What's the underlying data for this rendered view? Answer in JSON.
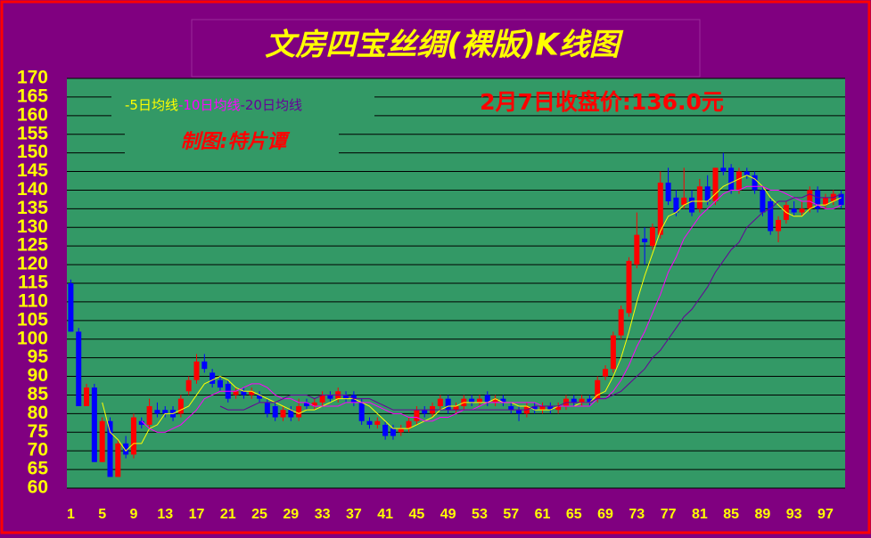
{
  "chart_data": {
    "type": "candlestick",
    "title": "文房四宝丝绸(裸版)K线图",
    "annotations": [
      "2月7日收盘价:136.0元",
      "制图:特片谭"
    ],
    "x": [
      1,
      2,
      3,
      4,
      5,
      6,
      7,
      8,
      9,
      10,
      11,
      12,
      13,
      14,
      15,
      16,
      17,
      18,
      19,
      20,
      21,
      22,
      23,
      24,
      25,
      26,
      27,
      28,
      29,
      30,
      31,
      32,
      33,
      34,
      35,
      36,
      37,
      38,
      39,
      40,
      41,
      42,
      43,
      44,
      45,
      46,
      47,
      48,
      49,
      50,
      51,
      52,
      53,
      54,
      55,
      56,
      57,
      58,
      59,
      60,
      61,
      62,
      63,
      64,
      65,
      66,
      67,
      68,
      69,
      70,
      71,
      72,
      73,
      74,
      75,
      76,
      77,
      78,
      79,
      80,
      81,
      82,
      83,
      84,
      85,
      86,
      87,
      88,
      89,
      90,
      91,
      92,
      93,
      94,
      95,
      96,
      97,
      98,
      99
    ],
    "open": [
      115,
      102,
      82,
      87,
      67,
      78,
      63,
      72,
      69,
      78,
      77,
      81,
      81,
      81,
      80,
      86,
      89,
      94,
      91,
      89,
      88,
      85,
      86,
      85,
      85,
      83,
      82,
      79,
      81,
      79,
      83,
      82,
      83,
      85,
      84,
      85,
      85,
      83,
      78,
      77,
      77,
      76,
      75,
      76,
      78,
      81,
      80,
      82,
      84,
      81,
      82,
      84,
      83,
      85,
      83,
      84,
      82,
      81,
      80,
      82,
      81,
      82,
      81,
      82,
      84,
      83,
      84,
      84,
      90,
      92,
      101,
      107,
      120,
      127,
      125,
      128,
      142,
      138,
      136,
      138,
      135,
      141,
      137,
      146,
      146,
      140,
      145,
      144,
      140,
      137,
      129,
      132,
      135,
      134,
      135,
      140,
      136,
      137,
      139
    ],
    "high": [
      116,
      103,
      88,
      88,
      79,
      79,
      73,
      74,
      80,
      79,
      84,
      83,
      82,
      82,
      85,
      90,
      96,
      96,
      92,
      90,
      89,
      87,
      87,
      87,
      86,
      84,
      83,
      82,
      82,
      84,
      84,
      84,
      86,
      86,
      87,
      86,
      86,
      84,
      79,
      79,
      78,
      77,
      77,
      79,
      82,
      82,
      83,
      85,
      85,
      83,
      85,
      85,
      85,
      86,
      85,
      85,
      83,
      82,
      83,
      83,
      83,
      83,
      83,
      85,
      85,
      85,
      85,
      90,
      93,
      102,
      109,
      122,
      134,
      130,
      131,
      145,
      146,
      140,
      146,
      140,
      143,
      144,
      146,
      150,
      147,
      146,
      146,
      145,
      141,
      138,
      133,
      137,
      137,
      137,
      141,
      141,
      139,
      140,
      140
    ],
    "low": [
      102,
      82,
      82,
      67,
      67,
      63,
      63,
      68,
      68,
      76,
      76,
      79,
      79,
      78,
      79,
      85,
      88,
      91,
      87,
      86,
      83,
      84,
      84,
      84,
      83,
      79,
      78,
      78,
      78,
      78,
      81,
      81,
      82,
      83,
      83,
      83,
      82,
      77,
      76,
      76,
      73,
      73,
      74,
      75,
      77,
      79,
      79,
      81,
      80,
      80,
      81,
      82,
      82,
      82,
      82,
      82,
      80,
      78,
      79,
      80,
      80,
      80,
      80,
      81,
      82,
      82,
      82,
      83,
      89,
      91,
      100,
      106,
      119,
      120,
      124,
      127,
      136,
      133,
      135,
      133,
      134,
      136,
      136,
      144,
      139,
      139,
      143,
      139,
      133,
      128,
      126,
      131,
      133,
      133,
      134,
      134,
      135,
      136,
      135
    ],
    "close": [
      102,
      82,
      87,
      67,
      78,
      63,
      72,
      69,
      79,
      77,
      82,
      80,
      80,
      79,
      84,
      89,
      94,
      92,
      88,
      87,
      84,
      86,
      85,
      86,
      84,
      80,
      79,
      81,
      79,
      82,
      82,
      83,
      85,
      84,
      86,
      84,
      83,
      78,
      77,
      78,
      74,
      74,
      76,
      78,
      81,
      80,
      82,
      84,
      81,
      82,
      84,
      83,
      84,
      83,
      84,
      83,
      81,
      80,
      82,
      81,
      82,
      81,
      82,
      84,
      83,
      84,
      83,
      89,
      92,
      101,
      108,
      121,
      128,
      126,
      130,
      142,
      137,
      134,
      138,
      134,
      141,
      137,
      146,
      145,
      140,
      145,
      144,
      140,
      134,
      129,
      132,
      136,
      134,
      135,
      140,
      135,
      138,
      139,
      136
    ],
    "up_color": "#ff0000",
    "down_color": "#0000ff",
    "lines": [
      {
        "name": "-5日均线",
        "color": "#ffff00",
        "values": [
          null,
          null,
          null,
          null,
          83,
          75,
          73,
          70,
          72,
          72,
          76,
          77,
          80,
          80,
          81,
          82,
          85,
          88,
          89,
          90,
          89,
          87,
          86,
          86,
          85,
          84,
          83,
          82,
          81,
          80,
          81,
          81,
          82,
          83,
          84,
          84,
          84,
          83,
          82,
          80,
          78,
          76,
          76,
          76,
          77,
          78,
          79,
          81,
          82,
          82,
          83,
          83,
          83,
          83,
          84,
          83,
          83,
          82,
          82,
          81,
          81,
          81,
          82,
          82,
          82,
          83,
          83,
          85,
          86,
          90,
          95,
          102,
          110,
          117,
          123,
          129,
          133,
          134,
          136,
          137,
          137,
          137,
          139,
          141,
          142,
          143,
          144,
          143,
          141,
          138,
          136,
          134,
          133,
          133,
          135,
          136,
          136,
          137,
          138
        ]
      },
      {
        "name": "-10日均线",
        "color": "#ff00ff",
        "values": [
          null,
          null,
          null,
          null,
          null,
          null,
          null,
          null,
          null,
          78,
          76,
          75,
          75,
          76,
          77,
          79,
          81,
          84,
          85,
          86,
          86,
          86,
          87,
          88,
          88,
          87,
          85,
          84,
          84,
          83,
          83,
          82,
          82,
          82,
          82,
          83,
          83,
          83,
          83,
          82,
          81,
          80,
          80,
          79,
          79,
          78,
          78,
          79,
          79,
          80,
          81,
          81,
          82,
          83,
          83,
          83,
          83,
          83,
          83,
          83,
          82,
          82,
          82,
          82,
          82,
          82,
          82,
          84,
          84,
          86,
          89,
          93,
          98,
          102,
          107,
          112,
          118,
          122,
          127,
          130,
          133,
          135,
          137,
          139,
          140,
          140,
          141,
          141,
          141,
          140,
          140,
          139,
          138,
          137,
          137,
          136,
          135,
          135,
          136
        ]
      },
      {
        "name": "-20日均线",
        "color": "#660099",
        "values": [
          null,
          null,
          null,
          null,
          null,
          null,
          null,
          null,
          null,
          null,
          null,
          null,
          null,
          null,
          null,
          null,
          null,
          null,
          null,
          82,
          81,
          81,
          81,
          82,
          83,
          83,
          83,
          84,
          85,
          85,
          85,
          84,
          85,
          85,
          85,
          85,
          84,
          84,
          84,
          83,
          82,
          81,
          81,
          81,
          81,
          81,
          81,
          81,
          81,
          81,
          81,
          81,
          81,
          81,
          81,
          81,
          81,
          81,
          81,
          82,
          82,
          82,
          82,
          83,
          83,
          83,
          83,
          84,
          84,
          85,
          86,
          88,
          90,
          92,
          95,
          97,
          100,
          103,
          106,
          108,
          111,
          114,
          118,
          121,
          124,
          126,
          130,
          132,
          134,
          135,
          137,
          137,
          138,
          138,
          139,
          138,
          138,
          138,
          139
        ]
      }
    ],
    "ylim": [
      60,
      170
    ],
    "yticks": [
      60,
      65,
      70,
      75,
      80,
      85,
      90,
      95,
      100,
      105,
      110,
      115,
      120,
      125,
      130,
      135,
      140,
      145,
      150,
      155,
      160,
      165,
      170
    ],
    "xlim": [
      0.5,
      99.5
    ],
    "xticks": [
      1,
      5,
      9,
      13,
      17,
      21,
      25,
      29,
      33,
      37,
      41,
      45,
      49,
      53,
      57,
      61,
      65,
      69,
      73,
      77,
      81,
      85,
      89,
      93,
      97
    ],
    "grid": true
  }
}
